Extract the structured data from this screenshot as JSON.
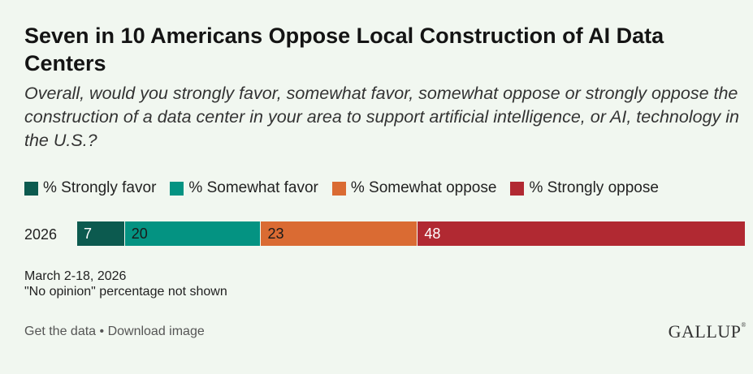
{
  "title": "Seven in 10 Americans Oppose Local Construction of AI Data Centers",
  "subtitle": "Overall, would you strongly favor, somewhat favor, somewhat oppose or strongly oppose the construction of a data center in your area to support artificial intelligence, or AI, technology in the U.S.?",
  "chart_data": {
    "type": "bar",
    "orientation": "horizontal-stacked-100",
    "categories": [
      "2026"
    ],
    "series": [
      {
        "name": "% Strongly favor",
        "values": [
          7
        ],
        "color": "#0c5a4f"
      },
      {
        "name": "% Somewhat favor",
        "values": [
          20
        ],
        "color": "#049382"
      },
      {
        "name": "% Somewhat oppose",
        "values": [
          23
        ],
        "color": "#da6b33"
      },
      {
        "name": "% Strongly oppose",
        "values": [
          48
        ],
        "color": "#b12932"
      }
    ],
    "label_colors": [
      "#ffffff",
      "#1a1a1a",
      "#1a1a1a",
      "#ffffff"
    ],
    "legend_position": "top-left",
    "grid": false
  },
  "notes": {
    "date": "March 2-18, 2026",
    "footnote": "\"No opinion\" percentage not shown"
  },
  "footer": {
    "get_data": "Get the data",
    "separator": " • ",
    "download": "Download image",
    "brand": "GALLUP",
    "brand_mark": "®"
  }
}
